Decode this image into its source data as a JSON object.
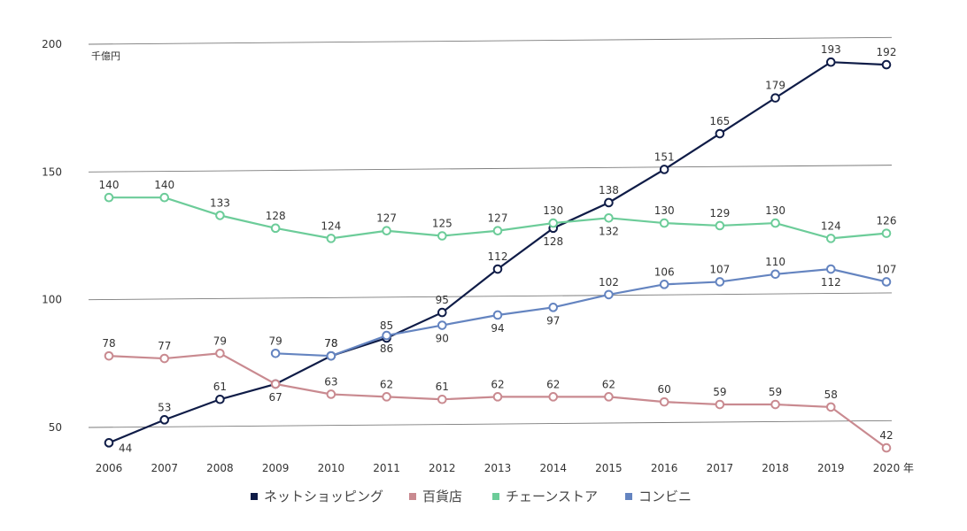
{
  "chart_data": {
    "type": "line",
    "unit_label": "千億円",
    "x_unit_suffix": "年",
    "x": [
      2006,
      2007,
      2008,
      2009,
      2010,
      2011,
      2012,
      2013,
      2014,
      2015,
      2016,
      2017,
      2018,
      2019,
      2020
    ],
    "y_ticks": [
      50,
      100,
      150,
      200
    ],
    "ylim": [
      40,
      200
    ],
    "grid": true,
    "legend_position": "bottom",
    "series": [
      {
        "name": "ネットショッピング",
        "color": "#0f1c47",
        "values": [
          44,
          53,
          61,
          67,
          78,
          85,
          95,
          112,
          128,
          138,
          151,
          165,
          179,
          193,
          192
        ],
        "label_pos": [
          "below-right",
          "above",
          "above",
          "below",
          "above",
          "above",
          "above",
          "above",
          "below",
          "above",
          "above",
          "above",
          "above",
          "above",
          "above"
        ]
      },
      {
        "name": "百貨店",
        "color": "#c98a90",
        "values": [
          78,
          77,
          79,
          67,
          63,
          62,
          61,
          62,
          62,
          62,
          60,
          59,
          59,
          58,
          42
        ],
        "label_pos": [
          "above",
          "above",
          "above",
          "none",
          "above",
          "above",
          "above",
          "above",
          "above",
          "above",
          "above",
          "above",
          "above",
          "above",
          "above"
        ]
      },
      {
        "name": "チェーンストア",
        "color": "#6ccc99",
        "values": [
          140,
          140,
          133,
          128,
          124,
          127,
          125,
          127,
          130,
          132,
          130,
          129,
          130,
          124,
          126
        ],
        "label_pos": [
          "above",
          "above",
          "above",
          "above",
          "above",
          "above",
          "above",
          "above",
          "above",
          "below",
          "above",
          "above",
          "above",
          "above",
          "above"
        ]
      },
      {
        "name": "コンビニ",
        "color": "#6484c0",
        "values": [
          null,
          null,
          null,
          79,
          78,
          86,
          90,
          94,
          97,
          102,
          106,
          107,
          110,
          112,
          107
        ],
        "label_pos": [
          "none",
          "none",
          "none",
          "above",
          "above",
          "below",
          "below",
          "below",
          "below",
          "above",
          "above",
          "above",
          "above",
          "below",
          "above"
        ]
      }
    ]
  }
}
